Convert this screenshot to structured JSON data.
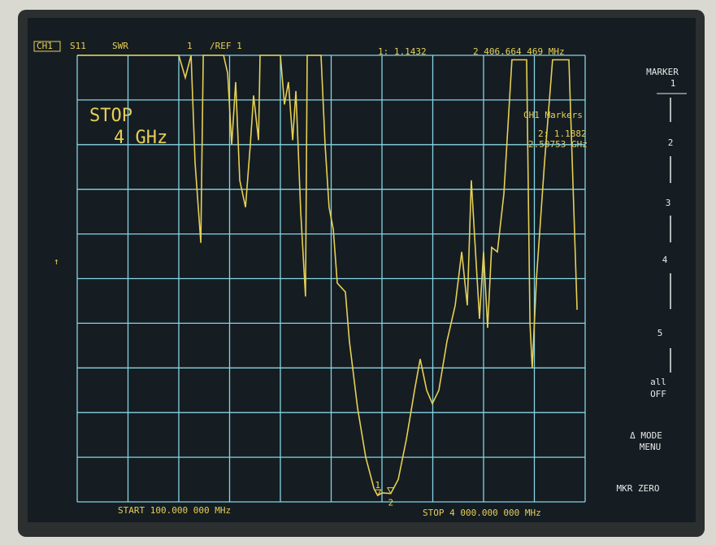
{
  "chart_data": {
    "type": "line",
    "x": [
      100,
      880,
      930,
      974,
      1005,
      1049,
      1068,
      1224,
      1255,
      1286,
      1317,
      1348,
      1392,
      1429,
      1454,
      1492,
      1504,
      1660,
      1691,
      1722,
      1754,
      1779,
      1816,
      1853,
      1866,
      1972,
      2003,
      2034,
      2066,
      2097,
      2159,
      2190,
      2253,
      2315,
      2378,
      2406.664469,
      2440,
      2507.53,
      2565,
      2627,
      2690,
      2733,
      2783,
      2827,
      2877,
      2939,
      3002,
      3052,
      3095,
      3126,
      3158,
      3189,
      3220,
      3251,
      3282,
      3326,
      3376,
      3438,
      3551,
      3576,
      3594,
      3626,
      3688,
      3750,
      3875,
      3938
    ],
    "series": [
      {
        "color": "#e6cf55",
        "values": [
          11,
          11,
          10.5,
          11,
          8.6,
          6.8,
          11,
          11,
          10.6,
          9.0,
          10.4,
          8.2,
          7.6,
          9.0,
          10.1,
          9.1,
          11,
          11,
          9.9,
          10.4,
          9.1,
          10.2,
          7.5,
          5.6,
          11,
          11,
          9.0,
          7.6,
          7.1,
          5.9,
          5.7,
          4.6,
          3.1,
          2.0,
          1.3,
          1.1432,
          1.2,
          1.1882,
          1.5,
          2.4,
          3.5,
          4.2,
          3.5,
          3.2,
          3.5,
          4.6,
          5.4,
          6.6,
          5.4,
          8.2,
          6.6,
          5.1,
          6.6,
          4.9,
          6.7,
          6.6,
          7.9,
          10.9,
          10.9,
          5.0,
          4.0,
          6.0,
          8.6,
          10.9,
          10.9,
          5.3
        ]
      }
    ],
    "xlim": [
      100,
      4000
    ],
    "ylim": [
      1,
      11
    ],
    "grid": true,
    "grid_color": "#86d4e4",
    "markers": [
      {
        "label": "1",
        "x": 2406.664469,
        "y": 1.1432
      },
      {
        "label": "2",
        "x": 2507.53,
        "y": 1.1882
      }
    ]
  },
  "screen": {
    "channel": "CH1",
    "parameter": "S11",
    "format": "SWR",
    "scale": "1",
    "reference": "/REF 1",
    "marker_value": "1: 1.1432",
    "marker_frequency": "2 406.664 469 MHz",
    "stop_title": "STOP",
    "stop_value": "4 GHz",
    "markers_title": "CH1 Markers",
    "marker2_value": "2: 1.1882",
    "marker2_frequency": "2.50753 GHz",
    "start": "START 100.000 000 MHz",
    "stop": "STOP 4 000.000 000 MHz",
    "softkeys": [
      "MARKER",
      "1",
      "2",
      "3",
      "4",
      "5",
      "all",
      "OFF",
      "Δ MODE",
      "MENU",
      "MKR ZERO"
    ]
  }
}
